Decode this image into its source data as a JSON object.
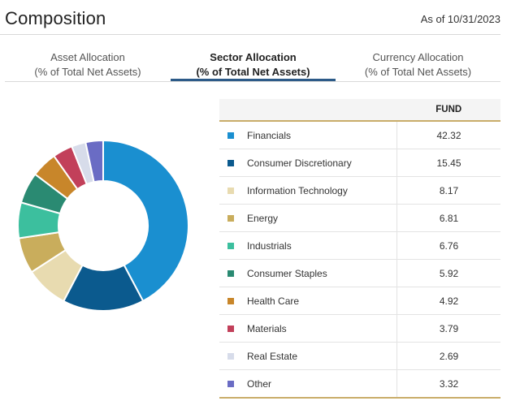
{
  "header": {
    "title": "Composition",
    "as_of": "As of 10/31/2023"
  },
  "tabs": [
    {
      "line1": "Asset Allocation",
      "line2": "(% of Total Net Assets)",
      "active": false
    },
    {
      "line1": "Sector Allocation",
      "line2": "(% of Total Net Assets)",
      "active": true
    },
    {
      "line1": "Currency Allocation",
      "line2": "(% of Total Net Assets)",
      "active": false
    }
  ],
  "table": {
    "value_header": "FUND",
    "rows": [
      {
        "label": "Financials",
        "value": "42.32",
        "color": "#1a8fd0"
      },
      {
        "label": "Consumer Discretionary",
        "value": "15.45",
        "color": "#0b5a8e"
      },
      {
        "label": "Information Technology",
        "value": "8.17",
        "color": "#e8dbb0"
      },
      {
        "label": "Energy",
        "value": "6.81",
        "color": "#c9ad5c"
      },
      {
        "label": "Industrials",
        "value": "6.76",
        "color": "#3cbf9e"
      },
      {
        "label": "Consumer Staples",
        "value": "5.92",
        "color": "#2a8a72"
      },
      {
        "label": "Health Care",
        "value": "4.92",
        "color": "#c8862a"
      },
      {
        "label": "Materials",
        "value": "3.79",
        "color": "#c2405a"
      },
      {
        "label": "Real Estate",
        "value": "2.69",
        "color": "#d7dcea"
      },
      {
        "label": "Other",
        "value": "3.32",
        "color": "#6a6cc4"
      }
    ]
  },
  "chart_data": {
    "type": "pie",
    "categories": [
      "Financials",
      "Consumer Discretionary",
      "Information Technology",
      "Energy",
      "Industrials",
      "Consumer Staples",
      "Health Care",
      "Materials",
      "Real Estate",
      "Other"
    ],
    "values": [
      42.32,
      15.45,
      8.17,
      6.81,
      6.76,
      5.92,
      4.92,
      3.79,
      2.69,
      3.32
    ],
    "colors": [
      "#1a8fd0",
      "#0b5a8e",
      "#e8dbb0",
      "#c9ad5c",
      "#3cbf9e",
      "#2a8a72",
      "#c8862a",
      "#c2405a",
      "#d7dcea",
      "#6a6cc4"
    ],
    "donut": true
  }
}
